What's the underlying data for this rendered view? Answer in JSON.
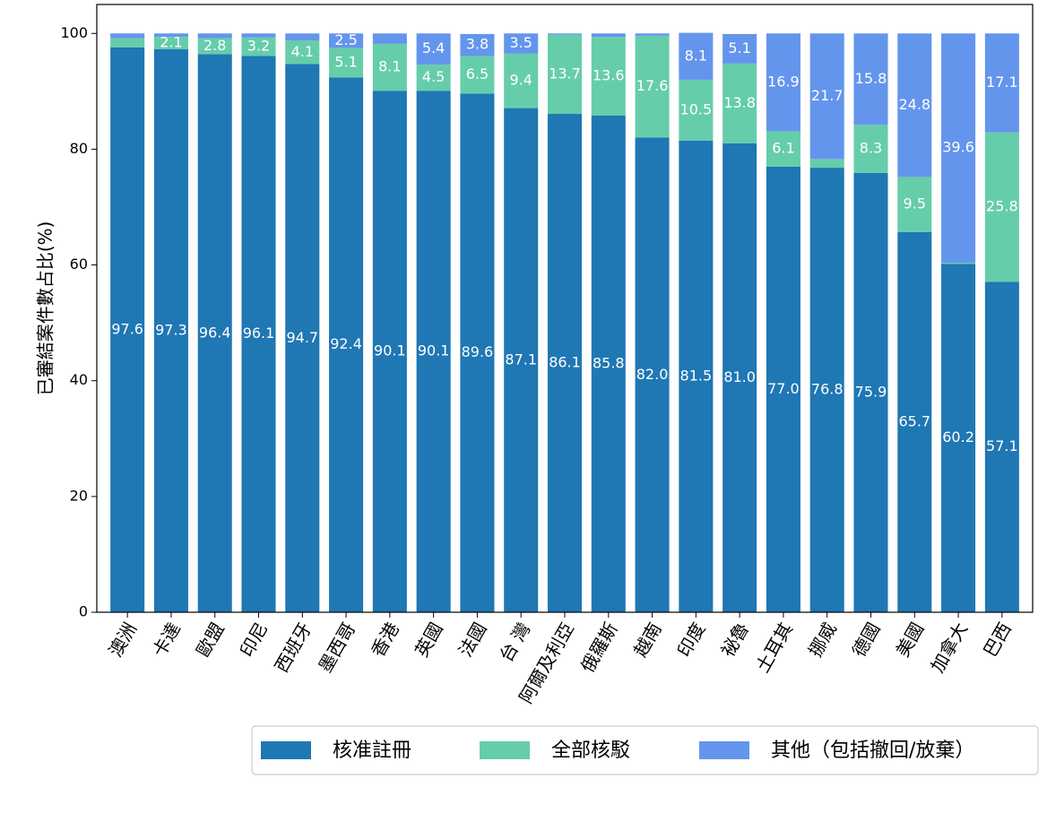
{
  "chart_data": {
    "type": "bar",
    "stacked": true,
    "title": "",
    "xlabel": "",
    "ylabel": "已審結案件數占比(%)",
    "ylim": [
      0,
      105
    ],
    "yticks": [
      0,
      20,
      40,
      60,
      80,
      100
    ],
    "grid": false,
    "legend_position": "bottom-right",
    "categories": [
      "澳洲",
      "卡達",
      "歐盟",
      "印尼",
      "西班牙",
      "墨西哥",
      "香港",
      "英國",
      "法國",
      "台 灣",
      "阿爾及利亞",
      "俄羅斯",
      "越南",
      "印度",
      "祕魯",
      "土耳其",
      "挪威",
      "德國",
      "美國",
      "加拿大",
      "巴西"
    ],
    "series": [
      {
        "name": "核准註冊",
        "color": "#1f77b4",
        "values": [
          97.6,
          97.3,
          96.4,
          96.1,
          94.7,
          92.4,
          90.1,
          90.1,
          89.6,
          87.1,
          86.1,
          85.8,
          82.0,
          81.5,
          81.0,
          77.0,
          76.8,
          75.9,
          65.7,
          60.2,
          57.1
        ],
        "labels": [
          "97.6",
          "97.3",
          "96.4",
          "96.1",
          "94.7",
          "92.4",
          "90.1",
          "90.1",
          "89.6",
          "87.1",
          "86.1",
          "85.8",
          "82.0",
          "81.5",
          "81.0",
          "77.0",
          "76.8",
          "75.9",
          "65.7",
          "60.2",
          "57.1"
        ]
      },
      {
        "name": "全部核駁",
        "color": "#66cdaa",
        "values": [
          1.6,
          2.1,
          2.8,
          3.2,
          4.1,
          5.1,
          8.1,
          4.5,
          6.5,
          9.4,
          13.7,
          13.6,
          17.6,
          10.5,
          13.8,
          6.1,
          1.5,
          8.3,
          9.5,
          0.2,
          25.8
        ],
        "labels": [
          "",
          "2.1",
          "2.8",
          "3.2",
          "4.1",
          "5.1",
          "8.1",
          "4.5",
          "6.5",
          "9.4",
          "13.7",
          "13.6",
          "17.6",
          "10.5",
          "13.8",
          "6.1",
          "",
          "8.3",
          "9.5",
          "",
          "25.8"
        ]
      },
      {
        "name": "其他（包括撤回/放棄）",
        "color": "#6495ed",
        "values": [
          0.8,
          0.6,
          0.8,
          0.7,
          1.2,
          2.5,
          1.8,
          5.4,
          3.8,
          3.5,
          0.2,
          0.6,
          0.4,
          8.1,
          5.1,
          16.9,
          21.7,
          15.8,
          24.8,
          39.6,
          17.1
        ],
        "labels": [
          "",
          "",
          "",
          "",
          "",
          "2.5",
          "",
          "5.4",
          "3.8",
          "3.5",
          "",
          "",
          "",
          "8.1",
          "5.1",
          "16.9",
          "21.7",
          "15.8",
          "24.8",
          "39.6",
          "17.1"
        ]
      }
    ]
  }
}
